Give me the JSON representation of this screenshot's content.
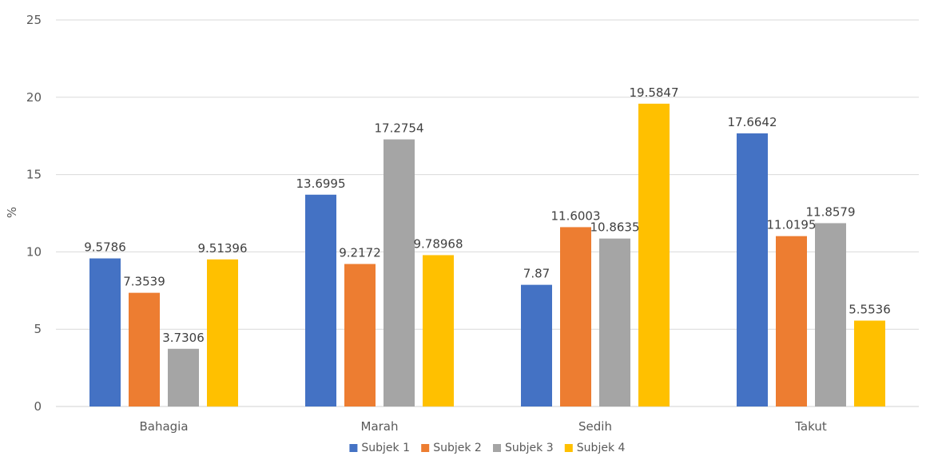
{
  "chart_data": {
    "type": "bar",
    "title": "",
    "xlabel": "",
    "ylabel": "%",
    "ylim": [
      0,
      25
    ],
    "yticks": [
      0,
      5,
      10,
      15,
      20,
      25
    ],
    "grid": true,
    "legend_position": "bottom",
    "categories": [
      "Bahagia",
      "Marah",
      "Sedih",
      "Takut"
    ],
    "series": [
      {
        "name": "Subjek 1",
        "color": "#4472c4",
        "values": [
          9.5786,
          13.6995,
          7.87,
          17.6642
        ],
        "labels": [
          "9.5786",
          "13.6995",
          "7.87",
          "17.6642"
        ]
      },
      {
        "name": "Subjek 2",
        "color": "#ed7d31",
        "values": [
          7.3539,
          9.2172,
          11.6003,
          11.0195
        ],
        "labels": [
          "7.3539",
          "9.2172",
          "11.6003",
          "11.0195"
        ]
      },
      {
        "name": "Subjek 3",
        "color": "#a5a5a5",
        "values": [
          3.7306,
          17.2754,
          10.8635,
          11.8579
        ],
        "labels": [
          "3.7306",
          "17.2754",
          "10.8635",
          "11.8579"
        ]
      },
      {
        "name": "Subjek 4",
        "color": "#ffc000",
        "values": [
          9.51396,
          9.78968,
          19.5847,
          5.5536
        ],
        "labels": [
          "9.51396",
          "9.78968",
          "19.5847",
          "5.5536"
        ]
      }
    ]
  }
}
